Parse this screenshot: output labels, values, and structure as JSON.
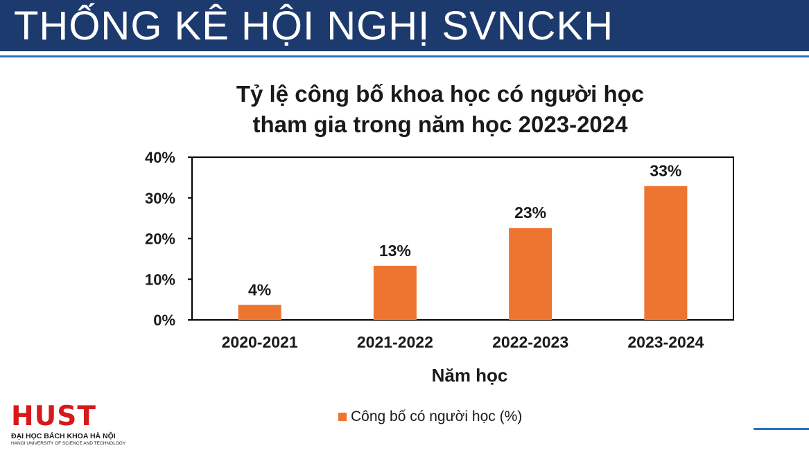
{
  "header": {
    "title": "THỐNG KÊ HỘI NGHỊ SVNCKH"
  },
  "colors": {
    "header_bg": "#1d3a6e",
    "accent_rule": "#2a74b8",
    "bar": "#ed7530",
    "logo": "#d7191c"
  },
  "chart_data": {
    "type": "bar",
    "title_lines": [
      "Tỷ lệ công bố khoa học có người học",
      "tham gia trong năm học 2023-2024"
    ],
    "categories": [
      "2020-2021",
      "2021-2022",
      "2022-2023",
      "2023-2024"
    ],
    "series": [
      {
        "name": "Công bố có người học (%)",
        "values": [
          3.7,
          13.3,
          22.6,
          32.9
        ],
        "data_labels": [
          "4%",
          "13%",
          "23%",
          "33%"
        ]
      }
    ],
    "xlabel": "Năm học",
    "ylabel": "",
    "ylim": [
      0,
      40
    ],
    "yticks": [
      0,
      10,
      20,
      30,
      40
    ],
    "ytick_labels": [
      "0%",
      "10%",
      "20%",
      "30%",
      "40%"
    ],
    "grid": false,
    "legend_position": "bottom"
  },
  "logo": {
    "word": "HUST",
    "line1": "ĐẠI HỌC BÁCH KHOA HÀ NỘI",
    "line2": "HANOI UNIVERSITY OF SCIENCE AND TECHNOLOGY"
  }
}
